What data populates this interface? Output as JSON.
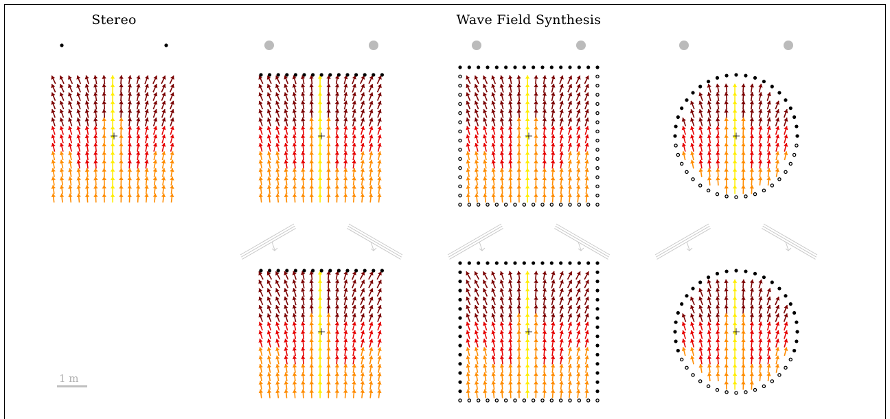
{
  "titles": {
    "stereo": "Stereo",
    "wfs": "Wave Field Synthesis"
  },
  "scale": {
    "label": "1 m"
  },
  "colors": {
    "yellow": "#ffee00",
    "orange": "#ff8c00",
    "red": "#e60000",
    "darkred": "#7a0000",
    "source": "#bbbbbb",
    "speaker": "#000000",
    "arrow_indicator": "#c8c8c8"
  },
  "panels": [
    {
      "id": "stereo",
      "row": 1,
      "array": "stereo",
      "sources": "stereo"
    },
    {
      "id": "wfs-line-top",
      "row": 1,
      "array": "line",
      "sources": "virtual"
    },
    {
      "id": "wfs-square-top",
      "row": 1,
      "array": "square",
      "sources": "virtual"
    },
    {
      "id": "wfs-circle-top",
      "row": 1,
      "array": "circle",
      "sources": "virtual"
    },
    {
      "id": "wfs-line-bottom",
      "row": 2,
      "array": "line",
      "sources": "none"
    },
    {
      "id": "wfs-square-bottom",
      "row": 2,
      "array": "square",
      "sources": "none"
    },
    {
      "id": "wfs-circle-bottom",
      "row": 2,
      "array": "circle",
      "sources": "none"
    }
  ]
}
